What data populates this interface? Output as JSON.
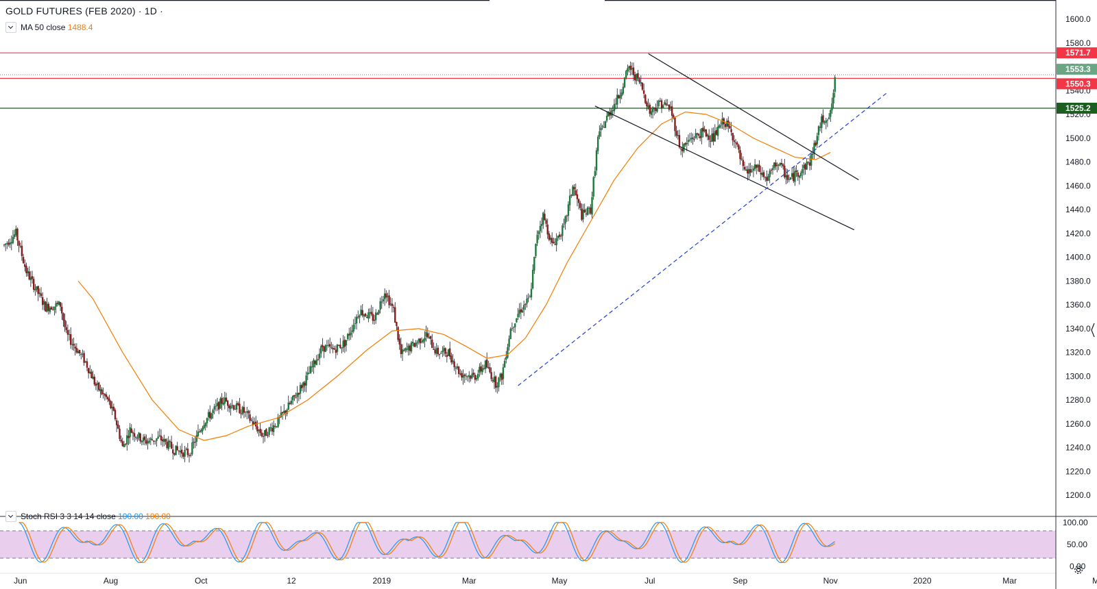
{
  "header": {
    "title": "GOLD FUTURES (FEB 2020) · 1D ·",
    "ma_label": "MA 50 close",
    "ma_value": "1488.4"
  },
  "indicator": {
    "label": "Stoch RSI 3 3 14 14 close",
    "k_value": "100.00",
    "d_value": "100.00",
    "ticks": [
      "100.00",
      "50.00",
      "0.00"
    ]
  },
  "price_levels": [
    {
      "label": "1571.7",
      "value": 1571.7,
      "color": "#f23645"
    },
    {
      "label": "1553.3",
      "value": 1553.3,
      "color": "#6aa684"
    },
    {
      "label": "1550.3",
      "value": 1550.3,
      "color": "#f23645"
    },
    {
      "label": "1525.2",
      "value": 1525.2,
      "color": "#1b5e20"
    }
  ],
  "chart_data": {
    "type": "candlestick",
    "title": "GOLD FUTURES (FEB 2020) · 1D ·",
    "ylim": [
      1190,
      1610
    ],
    "y_ticks": [
      "1200.0",
      "1220.0",
      "1240.0",
      "1260.0",
      "1280.0",
      "1300.0",
      "1320.0",
      "1340.0",
      "1360.0",
      "1380.0",
      "1400.0",
      "1420.0",
      "1440.0",
      "1460.0",
      "1480.0",
      "1500.0",
      "1520.0",
      "1540.0",
      "1560.0",
      "1580.0",
      "1600.0"
    ],
    "x_labels": [
      "Jun",
      "Aug",
      "Oct",
      "12",
      "2019",
      "Mar",
      "May",
      "Jul",
      "Sep",
      "Nov",
      "2020",
      "Mar",
      "May"
    ],
    "x_label_days": [
      11,
      72,
      133,
      194,
      255,
      314,
      375,
      436,
      497,
      558,
      620,
      679,
      740
    ],
    "price_path": [
      {
        "day": 0,
        "price": 1410
      },
      {
        "day": 8,
        "price": 1420
      },
      {
        "day": 15,
        "price": 1388
      },
      {
        "day": 28,
        "price": 1358
      },
      {
        "day": 38,
        "price": 1360
      },
      {
        "day": 42,
        "price": 1335
      },
      {
        "day": 55,
        "price": 1312
      },
      {
        "day": 62,
        "price": 1292
      },
      {
        "day": 70,
        "price": 1280
      },
      {
        "day": 75,
        "price": 1265
      },
      {
        "day": 80,
        "price": 1240
      },
      {
        "day": 85,
        "price": 1255
      },
      {
        "day": 95,
        "price": 1245
      },
      {
        "day": 105,
        "price": 1248
      },
      {
        "day": 115,
        "price": 1238
      },
      {
        "day": 125,
        "price": 1235
      },
      {
        "day": 135,
        "price": 1262
      },
      {
        "day": 148,
        "price": 1280
      },
      {
        "day": 162,
        "price": 1270
      },
      {
        "day": 175,
        "price": 1250
      },
      {
        "day": 185,
        "price": 1262
      },
      {
        "day": 195,
        "price": 1280
      },
      {
        "day": 205,
        "price": 1300
      },
      {
        "day": 215,
        "price": 1325
      },
      {
        "day": 222,
        "price": 1322
      },
      {
        "day": 230,
        "price": 1328
      },
      {
        "day": 240,
        "price": 1355
      },
      {
        "day": 250,
        "price": 1348
      },
      {
        "day": 257,
        "price": 1372
      },
      {
        "day": 263,
        "price": 1355
      },
      {
        "day": 268,
        "price": 1318
      },
      {
        "day": 275,
        "price": 1325
      },
      {
        "day": 285,
        "price": 1335
      },
      {
        "day": 292,
        "price": 1320
      },
      {
        "day": 300,
        "price": 1320
      },
      {
        "day": 308,
        "price": 1302
      },
      {
        "day": 318,
        "price": 1300
      },
      {
        "day": 325,
        "price": 1310
      },
      {
        "day": 332,
        "price": 1294
      },
      {
        "day": 336,
        "price": 1300
      },
      {
        "day": 342,
        "price": 1340
      },
      {
        "day": 348,
        "price": 1355
      },
      {
        "day": 355,
        "price": 1365
      },
      {
        "day": 360,
        "price": 1420
      },
      {
        "day": 364,
        "price": 1435
      },
      {
        "day": 370,
        "price": 1410
      },
      {
        "day": 378,
        "price": 1425
      },
      {
        "day": 384,
        "price": 1460
      },
      {
        "day": 390,
        "price": 1435
      },
      {
        "day": 396,
        "price": 1440
      },
      {
        "day": 401,
        "price": 1500
      },
      {
        "day": 408,
        "price": 1520
      },
      {
        "day": 415,
        "price": 1535
      },
      {
        "day": 422,
        "price": 1560
      },
      {
        "day": 430,
        "price": 1545
      },
      {
        "day": 436,
        "price": 1522
      },
      {
        "day": 443,
        "price": 1530
      },
      {
        "day": 450,
        "price": 1525
      },
      {
        "day": 457,
        "price": 1490
      },
      {
        "day": 464,
        "price": 1500
      },
      {
        "day": 472,
        "price": 1505
      },
      {
        "day": 479,
        "price": 1500
      },
      {
        "day": 486,
        "price": 1515
      },
      {
        "day": 493,
        "price": 1500
      },
      {
        "day": 500,
        "price": 1470
      },
      {
        "day": 508,
        "price": 1475
      },
      {
        "day": 515,
        "price": 1465
      },
      {
        "day": 522,
        "price": 1480
      },
      {
        "day": 530,
        "price": 1465
      },
      {
        "day": 537,
        "price": 1472
      },
      {
        "day": 544,
        "price": 1480
      },
      {
        "day": 552,
        "price": 1515
      },
      {
        "day": 558,
        "price": 1520
      },
      {
        "day": 561,
        "price": 1548
      }
    ],
    "ma50_path": [
      {
        "day": 50,
        "price": 1380
      },
      {
        "day": 60,
        "price": 1365
      },
      {
        "day": 80,
        "price": 1320
      },
      {
        "day": 100,
        "price": 1280
      },
      {
        "day": 118,
        "price": 1255
      },
      {
        "day": 135,
        "price": 1246
      },
      {
        "day": 150,
        "price": 1250
      },
      {
        "day": 165,
        "price": 1258
      },
      {
        "day": 185,
        "price": 1265
      },
      {
        "day": 205,
        "price": 1280
      },
      {
        "day": 225,
        "price": 1300
      },
      {
        "day": 245,
        "price": 1322
      },
      {
        "day": 262,
        "price": 1338
      },
      {
        "day": 280,
        "price": 1340
      },
      {
        "day": 297,
        "price": 1335
      },
      {
        "day": 312,
        "price": 1325
      },
      {
        "day": 326,
        "price": 1315
      },
      {
        "day": 340,
        "price": 1318
      },
      {
        "day": 352,
        "price": 1332
      },
      {
        "day": 366,
        "price": 1360
      },
      {
        "day": 380,
        "price": 1395
      },
      {
        "day": 396,
        "price": 1430
      },
      {
        "day": 412,
        "price": 1465
      },
      {
        "day": 428,
        "price": 1492
      },
      {
        "day": 444,
        "price": 1512
      },
      {
        "day": 460,
        "price": 1522
      },
      {
        "day": 474,
        "price": 1520
      },
      {
        "day": 490,
        "price": 1512
      },
      {
        "day": 506,
        "price": 1500
      },
      {
        "day": 520,
        "price": 1492
      },
      {
        "day": 534,
        "price": 1484
      },
      {
        "day": 548,
        "price": 1482
      },
      {
        "day": 558,
        "price": 1488
      }
    ],
    "channel_upper": [
      {
        "day": 435,
        "price": 1571
      },
      {
        "day": 577,
        "price": 1465
      }
    ],
    "channel_lower": [
      {
        "day": 399,
        "price": 1527
      },
      {
        "day": 574,
        "price": 1423
      }
    ],
    "support_trendline": [
      {
        "day": 347,
        "price": 1292
      },
      {
        "day": 597,
        "price": 1539
      }
    ],
    "horizontal_lines": [
      1571.7,
      1550.3,
      1525.2
    ],
    "dotted_line": 1553.3
  }
}
